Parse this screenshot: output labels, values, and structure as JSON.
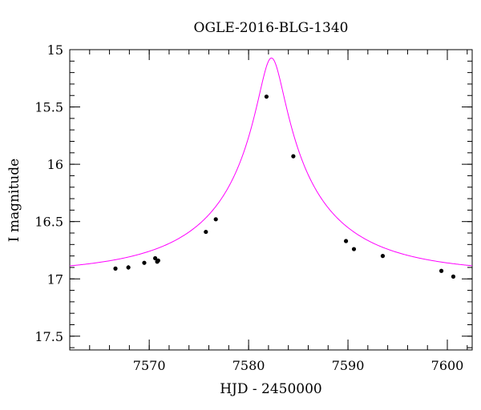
{
  "chart_data": {
    "type": "scatter",
    "title": "OGLE-2016-BLG-1340",
    "xlabel": "HJD - 2450000",
    "ylabel": "I magnitude",
    "xlim": [
      7562,
      7602.5
    ],
    "ylim": [
      17.62,
      15.0
    ],
    "y_inverted": true,
    "x_ticks": [
      7570,
      7580,
      7590,
      7600
    ],
    "y_ticks": [
      15,
      15.5,
      16,
      16.5,
      17,
      17.5
    ],
    "x_tick_labels": [
      "7570",
      "7580",
      "7590",
      "7600"
    ],
    "y_tick_labels": [
      "15",
      "15.5",
      "16",
      "16.5",
      "17",
      "17.5"
    ],
    "x_minor_step": 2,
    "y_minor_step": 0.1,
    "grid": false,
    "series": [
      {
        "kind": "points",
        "color": "#000000",
        "points": [
          {
            "x": 7566.6,
            "y": 16.91,
            "err": 0.015
          },
          {
            "x": 7567.9,
            "y": 16.9,
            "err": 0.02
          },
          {
            "x": 7569.5,
            "y": 16.86,
            "err": 0.015
          },
          {
            "x": 7570.6,
            "y": 16.82,
            "err": 0.012
          },
          {
            "x": 7570.8,
            "y": 16.85,
            "err": 0.015
          },
          {
            "x": 7570.9,
            "y": 16.84,
            "err": 0.015
          },
          {
            "x": 7575.7,
            "y": 16.59,
            "err": 0.012
          },
          {
            "x": 7576.7,
            "y": 16.48,
            "err": 0.012
          },
          {
            "x": 7581.8,
            "y": 15.41,
            "err": 0.012
          },
          {
            "x": 7584.5,
            "y": 15.93,
            "err": 0.012
          },
          {
            "x": 7589.8,
            "y": 16.67,
            "err": 0.012
          },
          {
            "x": 7590.6,
            "y": 16.74,
            "err": 0.015
          },
          {
            "x": 7593.5,
            "y": 16.8,
            "err": 0.012
          },
          {
            "x": 7599.4,
            "y": 16.93,
            "err": 0.015
          },
          {
            "x": 7600.6,
            "y": 16.98,
            "err": 0.015
          }
        ]
      },
      {
        "kind": "model",
        "color": "#ff00ff",
        "model": {
          "t0": 7582.3,
          "tE": 13.8,
          "u0": 0.09,
          "I_source": 17.8,
          "I_blend": 17.62
        }
      }
    ]
  }
}
